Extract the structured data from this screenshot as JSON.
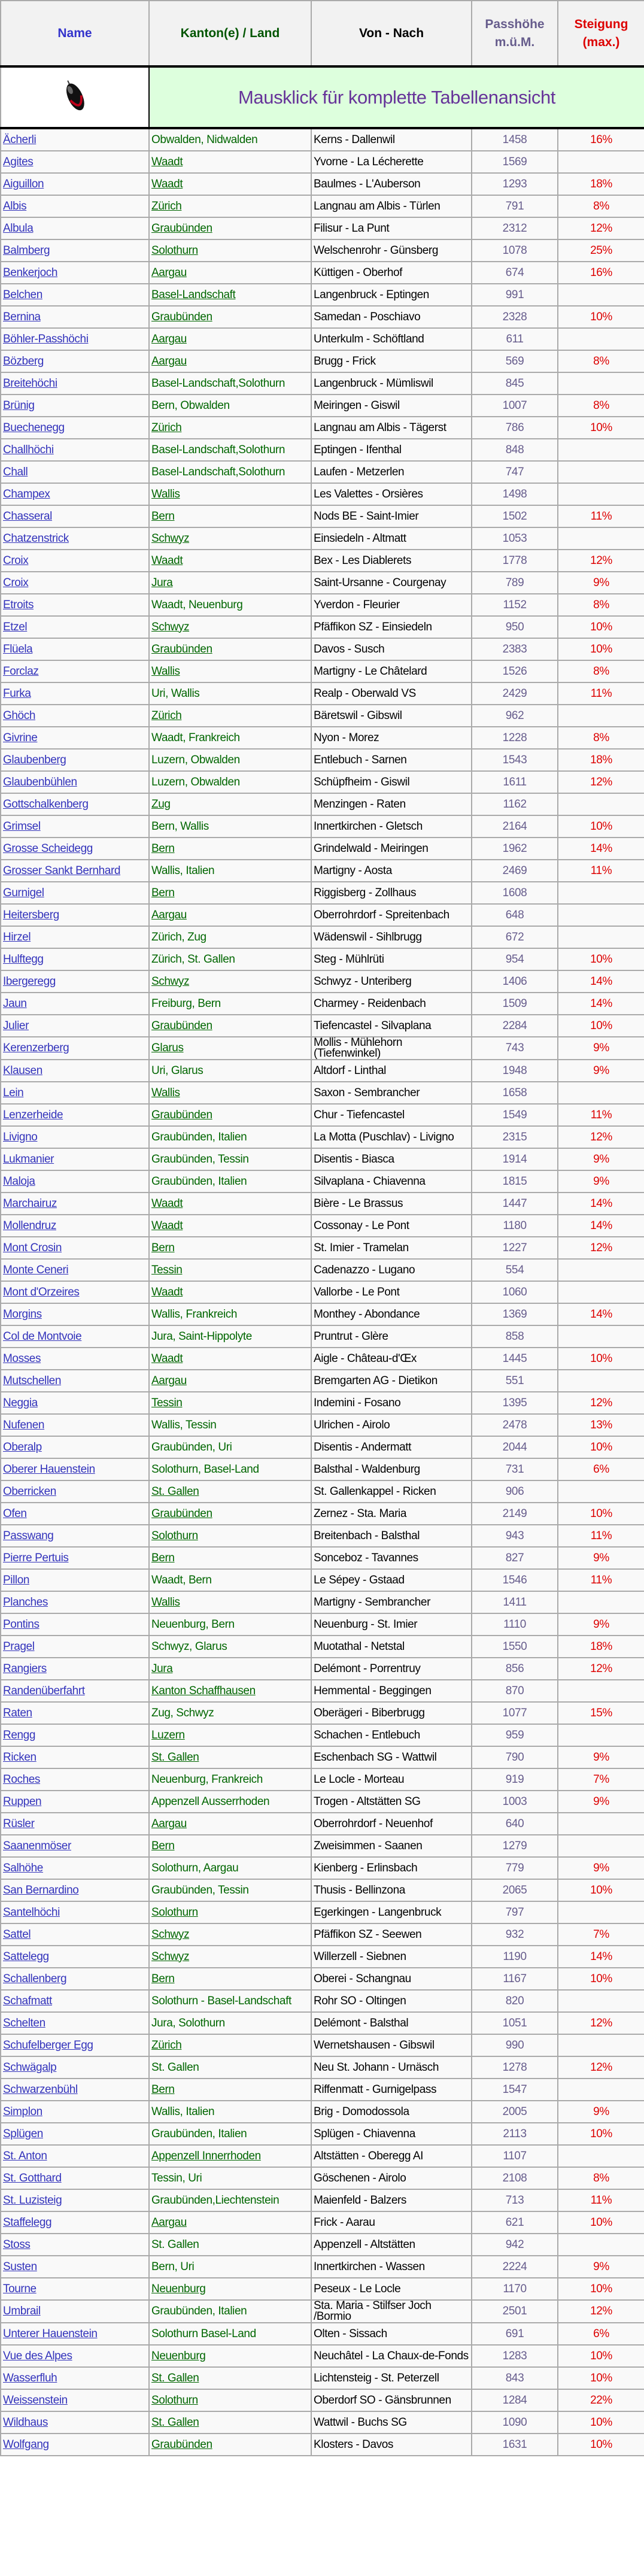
{
  "header": {
    "name": "Name",
    "kanton": "Kanton(e) / Land",
    "von": "Von - Nach",
    "hoehe_1": "Passhöhe",
    "hoehe_2": "m.ü.M.",
    "steigung_1": "Steigung",
    "steigung_2": "(max.)"
  },
  "banner": {
    "text": "Mausklick für komplette Tabellenansicht",
    "icon": "computer-mouse-icon"
  },
  "colors": {
    "name": "#3333bb",
    "kanton": "#006600",
    "hoehe": "#665c8c",
    "steigung": "#dd0000",
    "banner_bg": "#ddffdd",
    "banner_text": "#663399"
  },
  "row_fields": [
    "name",
    "kanton",
    "von_nach",
    "passhoehe",
    "steigung",
    "kanton_link"
  ],
  "rows": [
    [
      "Ächerli",
      "Obwalden, Nidwalden",
      "Kerns - Dallenwil",
      "1458",
      "16%",
      0
    ],
    [
      "Agites",
      "Waadt",
      "Yvorne - La Lécherette",
      "1569",
      "",
      1
    ],
    [
      "Aiguillon",
      "Waadt",
      "Baulmes - L'Auberson",
      "1293",
      "18%",
      1
    ],
    [
      "Albis",
      "Zürich",
      "Langnau am Albis - Türlen",
      "791",
      "8%",
      1
    ],
    [
      "Albula",
      "Graubünden",
      "Filisur - La Punt",
      "2312",
      "12%",
      1
    ],
    [
      "Balmberg",
      "Solothurn",
      "Welschenrohr - Günsberg",
      "1078",
      "25%",
      1
    ],
    [
      "Benkerjoch",
      "Aargau",
      "Küttigen - Oberhof",
      "674",
      "16%",
      1
    ],
    [
      "Belchen",
      "Basel-Landschaft",
      "Langenbruck - Eptingen",
      "991",
      "",
      1
    ],
    [
      "Bernina",
      "Graubünden",
      "Samedan - Poschiavo",
      "2328",
      "10%",
      1
    ],
    [
      "Böhler-Passhöchi",
      "Aargau",
      "Unterkulm - Schöftland",
      "611",
      "",
      1
    ],
    [
      "Bözberg",
      "Aargau",
      "Brugg - Frick",
      "569",
      "8%",
      1
    ],
    [
      "Breitehöchi",
      "Basel-Landschaft,Solothurn",
      "Langenbruck - Mümliswil",
      "845",
      "",
      0
    ],
    [
      "Brünig",
      "Bern, Obwalden",
      "Meiringen - Giswil",
      "1007",
      "8%",
      0
    ],
    [
      "Buechenegg",
      "Zürich",
      "Langnau am Albis - Tägerst",
      "786",
      "10%",
      1
    ],
    [
      "Challhöchi",
      "Basel-Landschaft,Solothurn",
      "Eptingen - Ifenthal",
      "848",
      "",
      0
    ],
    [
      "Chall",
      "Basel-Landschaft,Solothurn",
      "Laufen - Metzerlen",
      "747",
      "",
      0
    ],
    [
      "Champex",
      "Wallis",
      "Les Valettes - Orsières",
      "1498",
      "",
      1
    ],
    [
      "Chasseral",
      "Bern",
      "Nods BE - Saint-Imier",
      "1502",
      "11%",
      1
    ],
    [
      "Chatzenstrick",
      "Schwyz",
      "Einsiedeln - Altmatt",
      "1053",
      "",
      1
    ],
    [
      "Croix",
      "Waadt",
      "Bex - Les Diablerets",
      "1778",
      "12%",
      1
    ],
    [
      "Croix",
      "Jura",
      "Saint-Ursanne - Courgenay",
      "789",
      "9%",
      1
    ],
    [
      "Etroits",
      "Waadt, Neuenburg",
      "Yverdon - Fleurier",
      "1152",
      "8%",
      0
    ],
    [
      "Etzel",
      "Schwyz",
      "Pfäffikon SZ - Einsiedeln",
      "950",
      "10%",
      1
    ],
    [
      "Flüela",
      "Graubünden",
      "Davos - Susch",
      "2383",
      "10%",
      1
    ],
    [
      "Forclaz",
      "Wallis",
      "Martigny - Le Châtelard",
      "1526",
      "8%",
      1
    ],
    [
      "Furka",
      "Uri, Wallis",
      "Realp - Oberwald VS",
      "2429",
      "11%",
      0
    ],
    [
      "Ghöch",
      "Zürich",
      "Bäretswil - Gibswil",
      "962",
      "",
      1
    ],
    [
      "Givrine",
      "Waadt, Frankreich",
      "Nyon - Morez",
      "1228",
      "8%",
      0
    ],
    [
      "Glaubenberg",
      "Luzern, Obwalden",
      "Entlebuch - Sarnen",
      "1543",
      "18%",
      0
    ],
    [
      "Glaubenbühlen",
      "Luzern, Obwalden",
      "Schüpfheim - Giswil",
      "1611",
      "12%",
      0
    ],
    [
      "Gottschalkenberg",
      "Zug",
      "Menzingen - Raten",
      "1162",
      "",
      1
    ],
    [
      "Grimsel",
      "Bern, Wallis",
      "Innertkirchen - Gletsch",
      "2164",
      "10%",
      0
    ],
    [
      "Grosse Scheidegg",
      "Bern",
      "Grindelwald - Meiringen",
      "1962",
      "14%",
      1
    ],
    [
      "Grosser Sankt Bernhard",
      "Wallis, Italien",
      "Martigny - Aosta",
      "2469",
      "11%",
      0
    ],
    [
      "Gurnigel",
      "Bern",
      "Riggisberg - Zollhaus",
      "1608",
      "",
      1
    ],
    [
      "Heitersberg",
      "Aargau",
      "Oberrohrdorf - Spreitenbach",
      "648",
      "",
      1
    ],
    [
      "Hirzel",
      "Zürich, Zug",
      "Wädenswil - Sihlbrugg",
      "672",
      "",
      0
    ],
    [
      "Hulftegg",
      "Zürich, St. Gallen",
      "Steg - Mühlrüti",
      "954",
      "10%",
      0
    ],
    [
      "Ibergeregg",
      "Schwyz",
      "Schwyz - Unteriberg",
      "1406",
      "14%",
      1
    ],
    [
      "Jaun",
      "Freiburg, Bern",
      "Charmey - Reidenbach",
      "1509",
      "14%",
      0
    ],
    [
      "Julier",
      "Graubünden",
      "Tiefencastel - Silvaplana",
      "2284",
      "10%",
      1
    ],
    [
      "Kerenzerberg",
      "Glarus",
      "Mollis - Mühlehorn (Tiefenwinkel)",
      "743",
      "9%",
      1
    ],
    [
      "Klausen",
      "Uri, Glarus",
      "Altdorf - Linthal",
      "1948",
      "9%",
      0
    ],
    [
      "Lein",
      "Wallis",
      "Saxon - Sembrancher",
      "1658",
      "",
      1
    ],
    [
      "Lenzerheide",
      "Graubünden",
      "Chur - Tiefencastel",
      "1549",
      "11%",
      1
    ],
    [
      "Livigno",
      "Graubünden, Italien",
      "La Motta (Puschlav) - Livigno",
      "2315",
      "12%",
      0
    ],
    [
      "Lukmanier",
      "Graubünden, Tessin",
      "Disentis - Biasca",
      "1914",
      "9%",
      0
    ],
    [
      "Maloja",
      "Graubünden, Italien",
      "Silvaplana - Chiavenna",
      "1815",
      "9%",
      0
    ],
    [
      "Marchairuz",
      "Waadt",
      "Bière - Le Brassus",
      "1447",
      "14%",
      1
    ],
    [
      "Mollendruz",
      "Waadt",
      "Cossonay - Le Pont",
      "1180",
      "14%",
      1
    ],
    [
      "Mont Crosin",
      "Bern",
      "St. Imier - Tramelan",
      "1227",
      "12%",
      1
    ],
    [
      "Monte Ceneri",
      "Tessin",
      "Cadenazzo - Lugano",
      "554",
      "",
      1
    ],
    [
      "Mont d'Orzeires",
      "Waadt",
      "Vallorbe - Le Pont",
      "1060",
      "",
      1
    ],
    [
      "Morgins",
      "Wallis, Frankreich",
      "Monthey - Abondance",
      "1369",
      "14%",
      0
    ],
    [
      "Col de Montvoie",
      "Jura, Saint-Hippolyte",
      "Pruntrut - Glère",
      "858",
      "",
      0
    ],
    [
      "Mosses",
      "Waadt",
      "Aigle - Château-d'Œx",
      "1445",
      "10%",
      1
    ],
    [
      "Mutschellen",
      "Aargau",
      "Bremgarten AG - Dietikon",
      "551",
      "",
      1
    ],
    [
      "Neggia",
      "Tessin",
      "Indemini - Fosano",
      "1395",
      "12%",
      1
    ],
    [
      "Nufenen",
      "Wallis, Tessin",
      "Ulrichen - Airolo",
      "2478",
      "13%",
      0
    ],
    [
      "Oberalp",
      "Graubünden, Uri",
      "Disentis - Andermatt",
      "2044",
      "10%",
      0
    ],
    [
      "Oberer Hauenstein",
      "Solothurn, Basel-Land",
      "Balsthal - Waldenburg",
      "731",
      "6%",
      0
    ],
    [
      "Oberricken",
      "St. Gallen",
      "St. Gallenkappel - Ricken",
      "906",
      "",
      1
    ],
    [
      "Ofen",
      "Graubünden",
      "Zernez - Sta. Maria",
      "2149",
      "10%",
      1
    ],
    [
      "Passwang",
      "Solothurn",
      "Breitenbach - Balsthal",
      "943",
      "11%",
      1
    ],
    [
      "Pierre Pertuis",
      "Bern",
      "Sonceboz - Tavannes",
      "827",
      "9%",
      1
    ],
    [
      "Pillon",
      "Waadt, Bern",
      "Le Sépey - Gstaad",
      "1546",
      "11%",
      0
    ],
    [
      "Planches",
      "Wallis",
      "Martigny - Sembrancher",
      "1411",
      "",
      1
    ],
    [
      "Pontins",
      "Neuenburg, Bern",
      "Neuenburg - St. Imier",
      "1110",
      "9%",
      0
    ],
    [
      "Pragel",
      "Schwyz, Glarus",
      "Muotathal - Netstal",
      "1550",
      "18%",
      0
    ],
    [
      "Rangiers",
      "Jura",
      "Delémont - Porrentruy",
      "856",
      "12%",
      1
    ],
    [
      "Randenüberfahrt",
      "Kanton Schaffhausen",
      "Hemmental - Beggingen",
      "870",
      "",
      1
    ],
    [
      "Raten",
      "Zug, Schwyz",
      "Oberägeri - Biberbrugg",
      "1077",
      "15%",
      0
    ],
    [
      "Rengg",
      "Luzern",
      "Schachen - Entlebuch",
      "959",
      "",
      1
    ],
    [
      "Ricken",
      "St. Gallen",
      "Eschenbach SG - Wattwil",
      "790",
      "9%",
      1
    ],
    [
      "Roches",
      "Neuenburg, Frankreich",
      "Le Locle - Morteau",
      "919",
      "7%",
      0
    ],
    [
      "Ruppen",
      "Appenzell Ausserrhoden",
      "Trogen - Altstätten SG",
      "1003",
      "9%",
      0
    ],
    [
      "Rüsler",
      "Aargau",
      "Oberrohrdorf - Neuenhof",
      "640",
      "",
      1
    ],
    [
      "Saanenmöser",
      "Bern",
      "Zweisimmen - Saanen",
      "1279",
      "",
      1
    ],
    [
      "Salhöhe",
      "Solothurn, Aargau",
      "Kienberg - Erlinsbach",
      "779",
      "9%",
      0
    ],
    [
      "San Bernardino",
      "Graubünden, Tessin",
      "Thusis - Bellinzona",
      "2065",
      "10%",
      0
    ],
    [
      "Santelhöchi",
      "Solothurn",
      "Egerkingen - Langenbruck",
      "797",
      "",
      1
    ],
    [
      "Sattel",
      "Schwyz",
      "Pfäffikon SZ - Seewen",
      "932",
      "7%",
      1
    ],
    [
      "Sattelegg",
      "Schwyz",
      "Willerzell - Siebnen",
      "1190",
      "14%",
      1
    ],
    [
      "Schallenberg",
      "Bern",
      "Oberei - Schangnau",
      "1167",
      "10%",
      1
    ],
    [
      "Schafmatt",
      "Solothurn - Basel-Landschaft",
      "Rohr SO - Oltingen",
      "820",
      "",
      0
    ],
    [
      "Schelten",
      "Jura, Solothurn",
      "Delémont - Balsthal",
      "1051",
      "12%",
      0
    ],
    [
      "Schufelberger Egg",
      "Zürich",
      "Wernetshausen - Gibswil",
      "990",
      "",
      1
    ],
    [
      "Schwägalp",
      "St. Gallen",
      "Neu St. Johann - Urnäsch",
      "1278",
      "12%",
      0
    ],
    [
      "Schwarzenbühl",
      "Bern",
      "Riffenmatt - Gurnigelpass",
      "1547",
      "",
      1
    ],
    [
      "Simplon",
      "Wallis, Italien",
      "Brig - Domodossola",
      "2005",
      "9%",
      0
    ],
    [
      "Splügen",
      "Graubünden, Italien",
      "Splügen - Chiavenna",
      "2113",
      "10%",
      0
    ],
    [
      "St. Anton",
      "Appenzell Innerrhoden",
      "Altstätten - Oberegg AI",
      "1107",
      "",
      1
    ],
    [
      "St. Gotthard",
      "Tessin, Uri",
      "Göschenen - Airolo",
      "2108",
      "8%",
      0
    ],
    [
      "St. Luzisteig",
      "Graubünden,Liechtenstein",
      "Maienfeld - Balzers",
      "713",
      "11%",
      0
    ],
    [
      "Staffelegg",
      "Aargau",
      "Frick - Aarau",
      "621",
      "10%",
      1
    ],
    [
      "Stoss",
      "St. Gallen",
      "Appenzell - Altstätten",
      "942",
      "",
      0
    ],
    [
      "Susten",
      "Bern, Uri",
      "Innertkirchen - Wassen",
      "2224",
      "9%",
      0
    ],
    [
      "Tourne",
      "Neuenburg",
      "Peseux - Le Locle",
      "1170",
      "10%",
      1
    ],
    [
      "Umbrail",
      "Graubünden, Italien",
      "Sta. Maria - Stilfser Joch /Bormio",
      "2501",
      "12%",
      0
    ],
    [
      "Unterer Hauenstein",
      "Solothurn Basel-Land",
      "Olten - Sissach",
      "691",
      "6%",
      0
    ],
    [
      "Vue des Alpes",
      "Neuenburg",
      "Neuchâtel - La Chaux-de-Fonds",
      "1283",
      "10%",
      1
    ],
    [
      "Wasserfluh",
      "St. Gallen",
      "Lichtensteig - St. Peterzell",
      "843",
      "10%",
      1
    ],
    [
      "Weissenstein",
      "Solothurn",
      "Oberdorf SO - Gänsbrunnen",
      "1284",
      "22%",
      1
    ],
    [
      "Wildhaus",
      "St. Gallen",
      "Wattwil - Buchs SG",
      "1090",
      "10%",
      1
    ],
    [
      "Wolfgang",
      "Graubünden",
      "Klosters - Davos",
      "1631",
      "10%",
      1
    ]
  ]
}
